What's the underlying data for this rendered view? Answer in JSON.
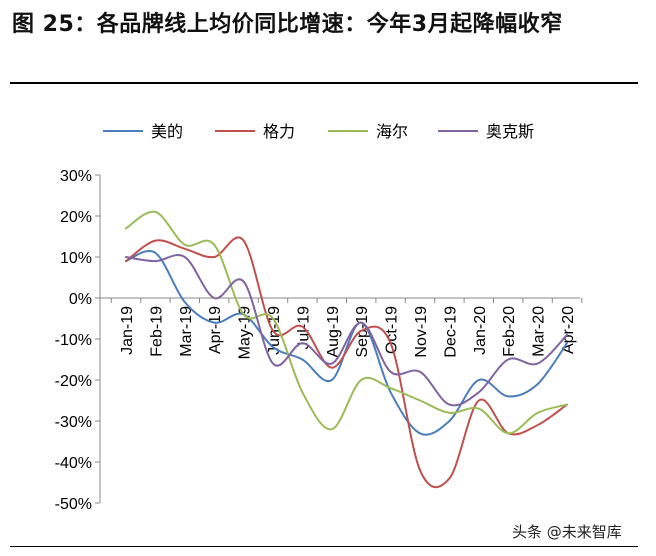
{
  "figure": {
    "title": "图 25：各品牌线上均价同比增速：今年3月起降幅收窄",
    "watermark": "头条 @未来智库"
  },
  "colors": {
    "美的": "#4a7ebb",
    "格力": "#c0504d",
    "海尔": "#9bbb59",
    "奥克斯": "#8064a2",
    "axis": "#888888"
  },
  "chart_data": {
    "type": "line",
    "title": "",
    "xlabel": "",
    "ylabel": "",
    "ylim": [
      -50,
      30
    ],
    "yticks": [
      "30%",
      "20%",
      "10%",
      "0%",
      "-10%",
      "-20%",
      "-30%",
      "-40%",
      "-50%"
    ],
    "categories": [
      "Jan-19",
      "Feb-19",
      "Mar-19",
      "Apr-19",
      "May-19",
      "Jun-19",
      "Jul-19",
      "Aug-19",
      "Sep-19",
      "Oct-19",
      "Nov-19",
      "Dec-19",
      "Jan-20",
      "Feb-20",
      "Mar-20",
      "Apr-20"
    ],
    "legend_position": "top",
    "series": [
      {
        "name": "美的",
        "values": [
          9,
          11,
          -1,
          -6,
          -4,
          -12,
          -15,
          -20,
          -6,
          -23,
          -33,
          -30,
          -20,
          -24,
          -21,
          -11
        ]
      },
      {
        "name": "格力",
        "values": [
          9,
          14,
          12,
          10,
          14,
          -8,
          -7,
          -17,
          -8,
          -11,
          -42,
          -44,
          -25,
          -33,
          -31,
          -26
        ]
      },
      {
        "name": "海尔",
        "values": [
          17,
          21,
          13,
          13,
          -4,
          -5,
          -23,
          -32,
          -20,
          -22,
          -25,
          -28,
          -27,
          -33,
          -28,
          -26
        ]
      },
      {
        "name": "奥克斯",
        "values": [
          10,
          9,
          10,
          0,
          4,
          -16,
          -11,
          -16,
          -6,
          -18,
          -18,
          -26,
          -23,
          -15,
          -16,
          -9
        ]
      }
    ]
  }
}
